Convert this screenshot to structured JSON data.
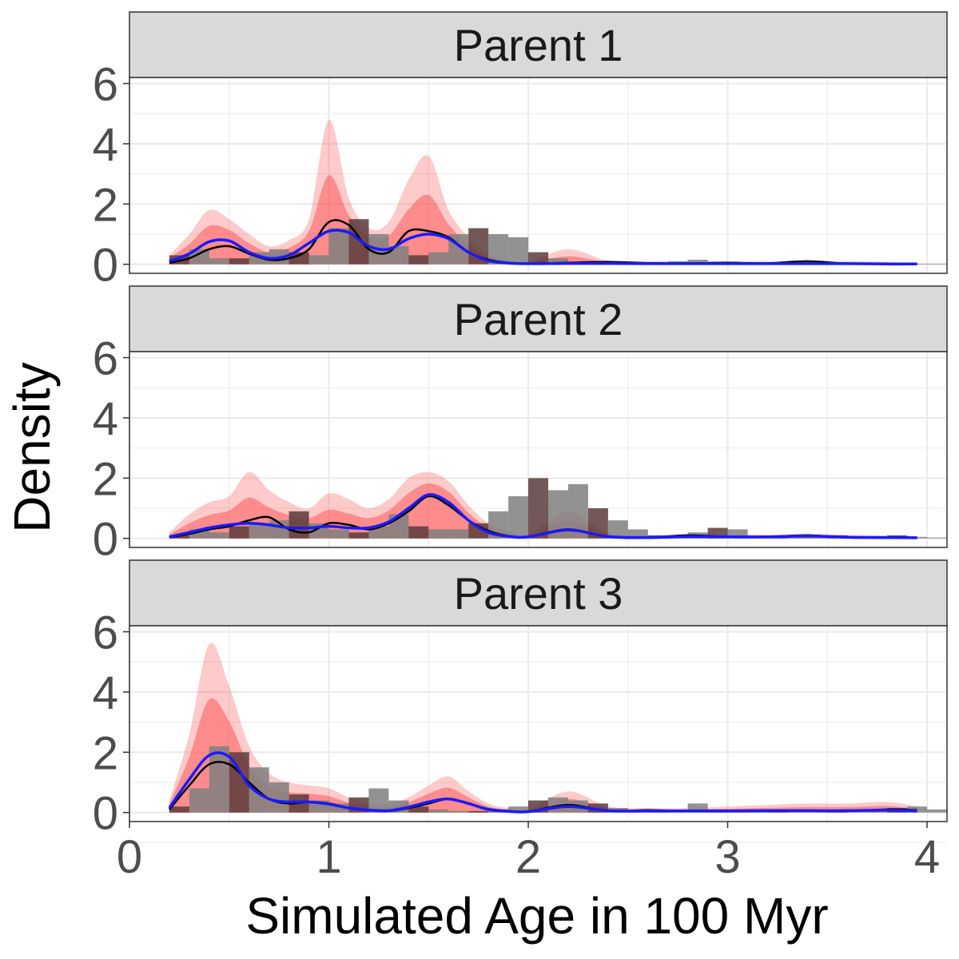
{
  "chart_data": {
    "type": "area",
    "facet_labels": [
      "Parent 1",
      "Parent 2",
      "Parent 3"
    ],
    "xlabel": "Simulated Age in 100 Myr",
    "ylabel": "Density",
    "xlim": [
      0,
      4.1
    ],
    "ylim": [
      -0.3,
      6.2
    ],
    "x_ticks": [
      0,
      1,
      2,
      3,
      4
    ],
    "y_ticks": [
      0,
      2,
      4,
      6
    ],
    "grid": true,
    "colors": {
      "histogram": "#7f7f7f",
      "histogram_dark": "#5a3b3b",
      "bootstrap_band": "#ff4040",
      "empirical_density": "#000000",
      "fitted_density": "#1a1aff",
      "strip_fill": "#d9d9d9",
      "grid": "#ebebeb"
    },
    "facets": [
      {
        "label": "Parent 1",
        "x": [
          0.2,
          0.3,
          0.4,
          0.5,
          0.6,
          0.7,
          0.8,
          0.9,
          1.0,
          1.1,
          1.2,
          1.3,
          1.4,
          1.5,
          1.6,
          1.7,
          1.8,
          1.9,
          2.0,
          2.2,
          2.4,
          2.6,
          2.8,
          3.0,
          3.2,
          3.4,
          3.6,
          3.8,
          3.95
        ],
        "empirical_density": [
          0.05,
          0.2,
          0.5,
          0.6,
          0.35,
          0.15,
          0.2,
          0.5,
          1.4,
          1.3,
          0.5,
          0.4,
          1.1,
          1.1,
          0.9,
          0.4,
          0.15,
          0.05,
          0.02,
          0.05,
          0.08,
          0.04,
          0.03,
          0.05,
          0.03,
          0.1,
          0.02,
          0.01,
          0.0
        ],
        "fitted_density": [
          0.1,
          0.35,
          0.75,
          0.78,
          0.4,
          0.2,
          0.3,
          0.7,
          1.1,
          1.05,
          0.6,
          0.5,
          0.85,
          1.0,
          0.85,
          0.4,
          0.12,
          0.04,
          0.02,
          0.03,
          0.03,
          0.02,
          0.02,
          0.02,
          0.02,
          0.02,
          0.02,
          0.01,
          0.01
        ],
        "band_upper": [
          0.3,
          1.0,
          1.8,
          1.5,
          1.0,
          0.6,
          0.8,
          1.5,
          4.8,
          2.2,
          1.2,
          1.4,
          2.8,
          3.6,
          1.8,
          0.9,
          0.35,
          0.15,
          0.08,
          0.5,
          0.12,
          0.1,
          0.1,
          0.1,
          0.1,
          0.12,
          0.1,
          0.08,
          0.05
        ],
        "hist_bins": [
          0.3,
          0.5,
          0.2,
          0.2,
          0.4,
          0.5,
          0.4,
          0.3,
          1.2,
          1.5,
          1.0,
          0.6,
          0.3,
          0.4,
          1.0,
          1.2,
          1.0,
          0.9,
          0.4,
          0.2,
          0.05,
          0.03,
          0.02,
          0.02,
          0.05,
          0.1,
          0.15,
          0.08,
          0.05,
          0.03,
          0.02,
          0.02,
          0.02,
          0.02,
          0.02,
          0.02,
          0.03,
          0.02,
          0.02
        ]
      },
      {
        "label": "Parent 2",
        "x": [
          0.2,
          0.3,
          0.4,
          0.5,
          0.6,
          0.7,
          0.8,
          0.9,
          1.0,
          1.1,
          1.2,
          1.3,
          1.4,
          1.5,
          1.6,
          1.7,
          1.8,
          1.9,
          2.0,
          2.2,
          2.4,
          2.6,
          2.8,
          3.0,
          3.2,
          3.4,
          3.6,
          3.8,
          3.95
        ],
        "empirical_density": [
          0.03,
          0.15,
          0.3,
          0.4,
          0.6,
          0.7,
          0.3,
          0.2,
          0.5,
          0.45,
          0.3,
          0.5,
          0.9,
          1.4,
          1.1,
          0.6,
          0.25,
          0.08,
          0.05,
          0.3,
          0.05,
          0.02,
          0.1,
          0.05,
          0.05,
          0.1,
          0.03,
          0.02,
          0.01
        ],
        "fitted_density": [
          0.05,
          0.2,
          0.35,
          0.45,
          0.5,
          0.45,
          0.35,
          0.35,
          0.4,
          0.35,
          0.35,
          0.55,
          1.0,
          1.45,
          1.2,
          0.6,
          0.2,
          0.07,
          0.05,
          0.28,
          0.06,
          0.03,
          0.06,
          0.05,
          0.05,
          0.08,
          0.04,
          0.03,
          0.02
        ],
        "band_upper": [
          0.2,
          0.8,
          1.2,
          1.4,
          2.2,
          1.6,
          1.2,
          1.0,
          1.5,
          1.3,
          1.0,
          1.3,
          2.0,
          2.2,
          1.9,
          1.1,
          0.5,
          0.25,
          0.15,
          0.9,
          0.2,
          0.1,
          0.15,
          0.15,
          0.12,
          0.15,
          0.12,
          0.1,
          0.08
        ],
        "hist_bins": [
          0.1,
          0.3,
          0.2,
          0.4,
          0.5,
          0.6,
          0.9,
          0.5,
          0.3,
          0.2,
          0.4,
          0.8,
          0.4,
          0.3,
          0.3,
          0.5,
          0.9,
          1.4,
          2.0,
          1.6,
          1.8,
          1.0,
          0.6,
          0.3,
          0.1,
          0.05,
          0.2,
          0.35,
          0.3,
          0.08,
          0.05,
          0.05,
          0.08,
          0.1,
          0.06,
          0.05,
          0.1,
          0.05,
          0.03
        ]
      },
      {
        "label": "Parent 3",
        "x": [
          0.2,
          0.3,
          0.4,
          0.5,
          0.6,
          0.7,
          0.8,
          0.9,
          1.0,
          1.1,
          1.2,
          1.3,
          1.4,
          1.5,
          1.6,
          1.7,
          1.8,
          1.9,
          2.0,
          2.2,
          2.4,
          2.6,
          2.8,
          3.0,
          3.2,
          3.4,
          3.6,
          3.8,
          3.95
        ],
        "empirical_density": [
          0.1,
          0.9,
          1.6,
          1.6,
          1.0,
          0.45,
          0.3,
          0.35,
          0.3,
          0.15,
          0.08,
          0.05,
          0.15,
          0.3,
          0.45,
          0.3,
          0.12,
          0.05,
          0.03,
          0.25,
          0.05,
          0.08,
          0.05,
          0.04,
          0.05,
          0.05,
          0.05,
          0.1,
          0.08
        ],
        "fitted_density": [
          0.15,
          1.1,
          1.9,
          1.85,
          0.9,
          0.45,
          0.35,
          0.35,
          0.28,
          0.15,
          0.08,
          0.06,
          0.18,
          0.35,
          0.45,
          0.3,
          0.1,
          0.04,
          0.03,
          0.2,
          0.06,
          0.05,
          0.05,
          0.05,
          0.06,
          0.06,
          0.06,
          0.08,
          0.05
        ],
        "band_upper": [
          0.4,
          2.6,
          5.6,
          4.2,
          2.2,
          1.3,
          1.0,
          0.9,
          0.8,
          0.5,
          0.3,
          0.3,
          0.5,
          0.9,
          1.2,
          0.7,
          0.3,
          0.15,
          0.1,
          0.7,
          0.2,
          0.15,
          0.15,
          0.2,
          0.25,
          0.3,
          0.3,
          0.35,
          0.2
        ],
        "hist_bins": [
          0.2,
          0.8,
          2.2,
          2.0,
          1.5,
          1.0,
          0.6,
          0.4,
          0.3,
          0.5,
          0.8,
          0.4,
          0.2,
          0.1,
          0.05,
          0.05,
          0.1,
          0.2,
          0.4,
          0.5,
          0.4,
          0.3,
          0.15,
          0.05,
          0.05,
          0.1,
          0.3,
          0.1,
          0.05,
          0.1,
          0.05,
          0.05,
          0.1,
          0.05,
          0.05,
          0.05,
          0.15,
          0.2,
          0.1
        ]
      }
    ]
  }
}
